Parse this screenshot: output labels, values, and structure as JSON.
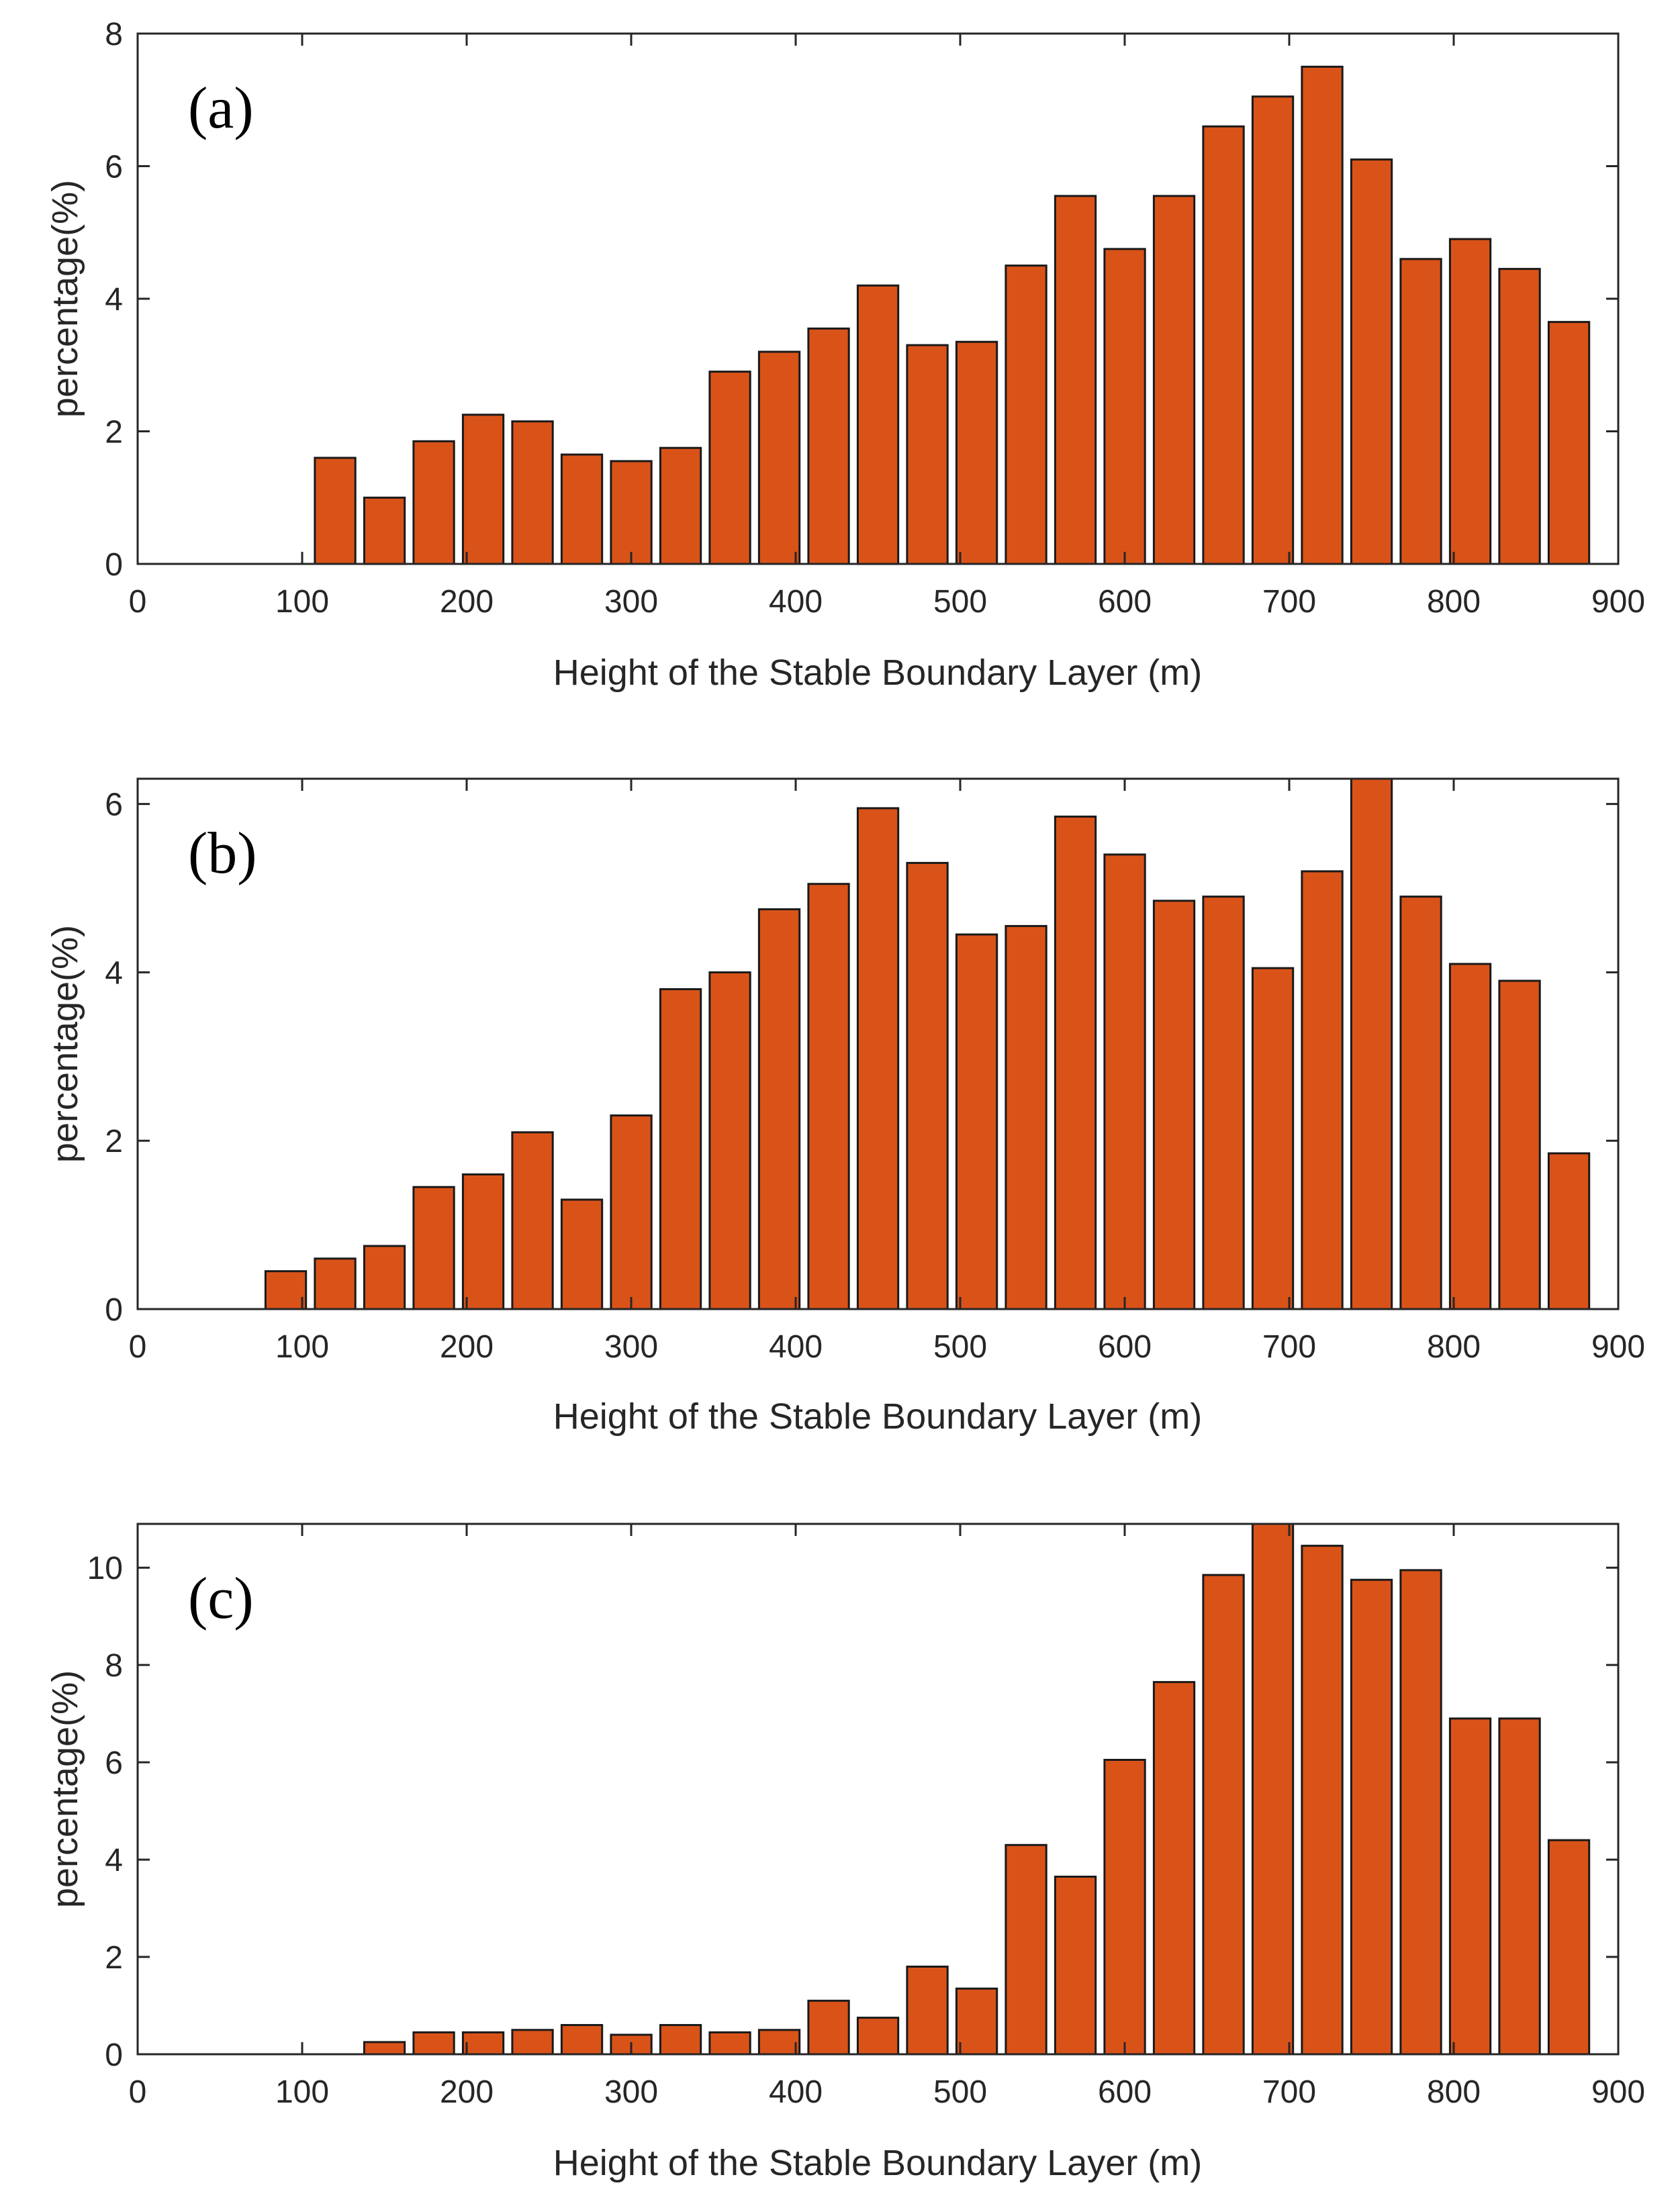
{
  "figure": {
    "bar_color": "#d95319",
    "edge_color": "#1a1a1a",
    "axis_color": "#262626"
  },
  "chart_data": [
    {
      "type": "bar",
      "panel_label": "(a)",
      "xlabel": "Height of the Stable Boundary Layer (m)",
      "ylabel": "percentage(%)",
      "xlim": [
        0,
        900
      ],
      "ylim": [
        0,
        8
      ],
      "xticks": [
        0,
        100,
        200,
        300,
        400,
        500,
        600,
        700,
        800,
        900
      ],
      "yticks": [
        0,
        2,
        4,
        6,
        8
      ],
      "bin_width": 30,
      "x": [
        105,
        135,
        165,
        195,
        225,
        255,
        285,
        315,
        345,
        375,
        405,
        435,
        465,
        495,
        525,
        555,
        585,
        615,
        645,
        675,
        705,
        735,
        765,
        795,
        825,
        855
      ],
      "values": [
        1.6,
        1.0,
        1.85,
        2.25,
        2.15,
        1.65,
        1.55,
        1.75,
        2.9,
        3.2,
        3.55,
        4.2,
        3.3,
        3.35,
        4.5,
        5.55,
        4.75,
        5.55,
        6.6,
        7.05,
        7.5,
        6.1,
        4.6,
        4.9,
        4.45,
        3.65
      ]
    },
    {
      "type": "bar",
      "panel_label": "(b)",
      "xlabel": "Height of the Stable Boundary Layer (m)",
      "ylabel": "percentage(%)",
      "xlim": [
        0,
        900
      ],
      "ylim": [
        0,
        6.3
      ],
      "xticks": [
        0,
        100,
        200,
        300,
        400,
        500,
        600,
        700,
        800,
        900
      ],
      "yticks": [
        0,
        2,
        4,
        6
      ],
      "bin_width": 30,
      "x": [
        75,
        105,
        135,
        165,
        195,
        225,
        255,
        285,
        315,
        345,
        375,
        405,
        435,
        465,
        495,
        525,
        555,
        585,
        615,
        645,
        675,
        705,
        735,
        765,
        795,
        825,
        855
      ],
      "values": [
        0.45,
        0.6,
        0.75,
        1.45,
        1.6,
        2.1,
        1.3,
        2.3,
        3.8,
        4.0,
        4.75,
        5.05,
        5.95,
        5.3,
        4.45,
        4.55,
        5.85,
        5.4,
        4.85,
        4.9,
        4.05,
        5.2,
        6.3,
        4.9,
        4.1,
        3.9,
        1.85
      ]
    },
    {
      "type": "bar",
      "panel_label": "(c)",
      "xlabel": "Height of the Stable Boundary Layer (m)",
      "ylabel": "percentage(%)",
      "xlim": [
        0,
        900
      ],
      "ylim": [
        0,
        10.9
      ],
      "xticks": [
        0,
        100,
        200,
        300,
        400,
        500,
        600,
        700,
        800,
        900
      ],
      "yticks": [
        0,
        2,
        4,
        6,
        8,
        10
      ],
      "bin_width": 30,
      "x": [
        135,
        165,
        195,
        225,
        255,
        285,
        315,
        345,
        375,
        405,
        435,
        465,
        495,
        525,
        555,
        585,
        615,
        645,
        675,
        705,
        735,
        765,
        795,
        825,
        855
      ],
      "values": [
        0.25,
        0.45,
        0.45,
        0.5,
        0.6,
        0.4,
        0.6,
        0.45,
        0.5,
        1.1,
        0.75,
        1.8,
        1.35,
        4.3,
        3.65,
        6.05,
        7.65,
        9.85,
        10.9,
        10.45,
        9.75,
        9.95,
        6.9,
        6.9,
        4.4
      ]
    }
  ]
}
